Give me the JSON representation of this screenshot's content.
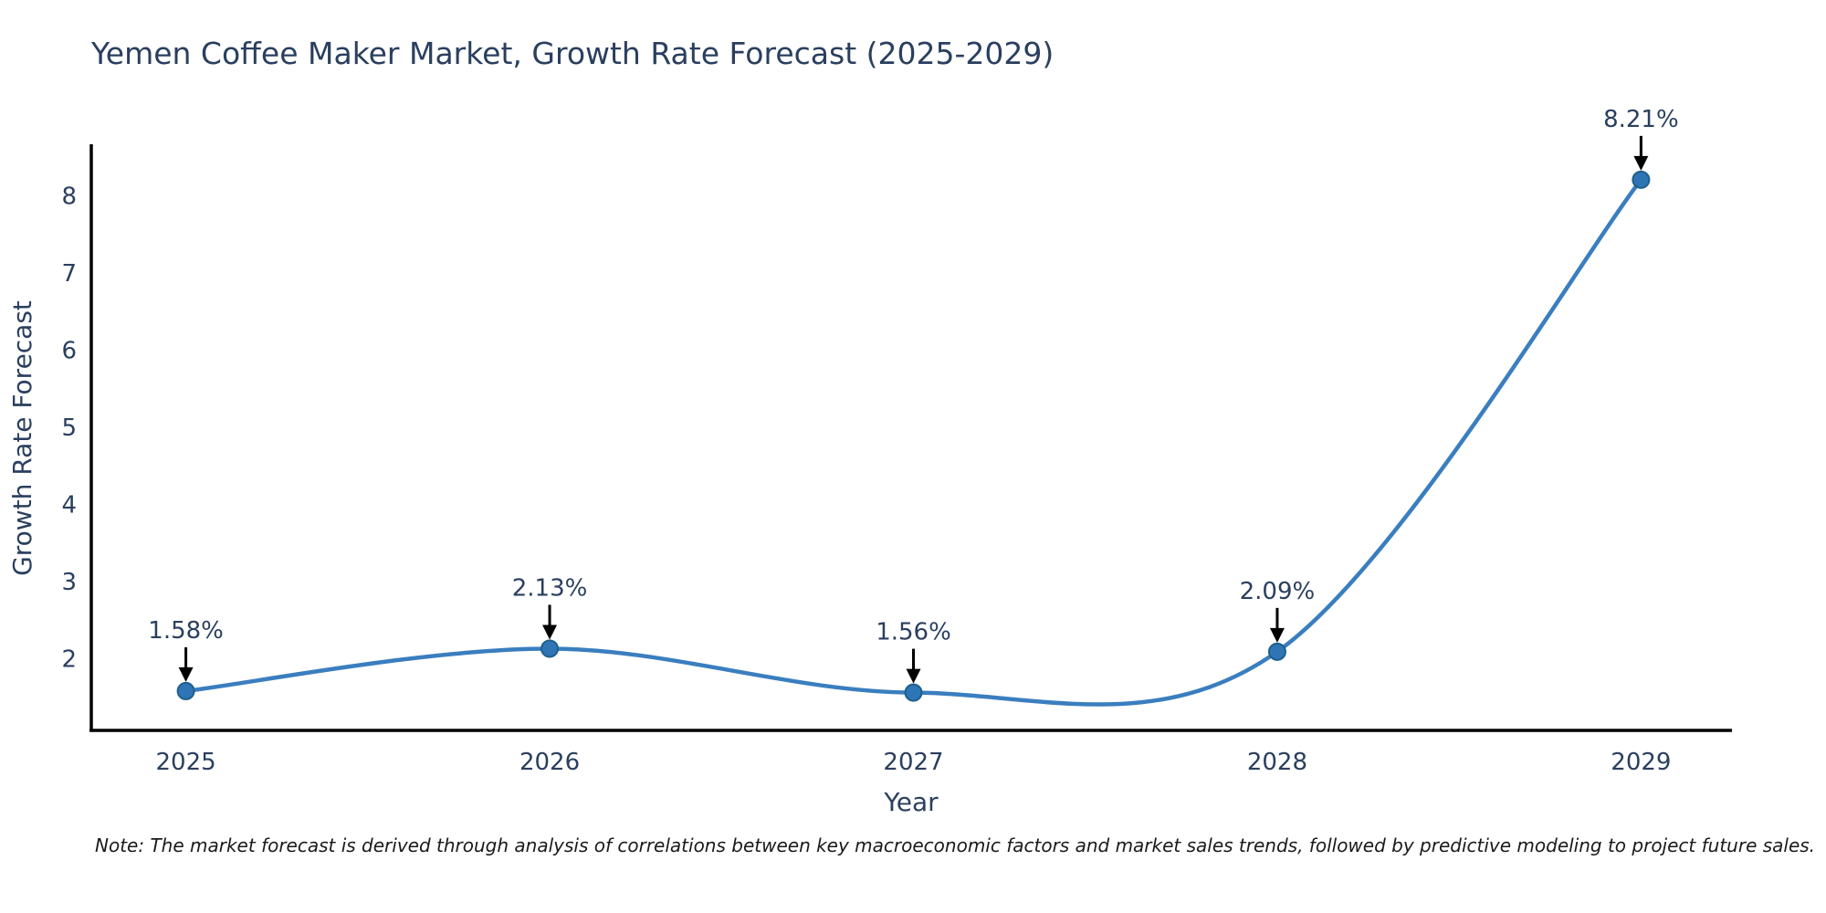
{
  "chart_data": {
    "type": "line",
    "title": "Yemen Coffee Maker Market, Growth Rate Forecast (2025-2029)",
    "xlabel": "Year",
    "ylabel": "Growth Rate Forecast",
    "x": [
      2025,
      2026,
      2027,
      2028,
      2029
    ],
    "values": [
      1.58,
      2.13,
      1.56,
      2.09,
      8.21
    ],
    "point_labels": [
      "1.58%",
      "2.13%",
      "1.56%",
      "2.09%",
      "8.21%"
    ],
    "x_tick_labels": [
      "2025",
      "2026",
      "2027",
      "2028",
      "2029"
    ],
    "y_ticks": [
      2,
      3,
      4,
      5,
      6,
      7,
      8
    ],
    "x_range": [
      2024.74,
      2029.25
    ],
    "y_range": [
      1.07,
      8.67
    ],
    "line_shape": "spline",
    "grid": false,
    "legend": "none",
    "colors": {
      "line": "#3a7ebf",
      "marker_fill": "#2e75b6",
      "marker_edge": "#1f5f8b",
      "axis": "#000000",
      "text": "#2a3f5f",
      "annotation_arrow": "#000000",
      "background": "#ffffff"
    }
  },
  "note": "Note: The market forecast is derived through analysis of correlations between key macroeconomic factors and market sales trends, followed by predictive modeling to project future sales."
}
